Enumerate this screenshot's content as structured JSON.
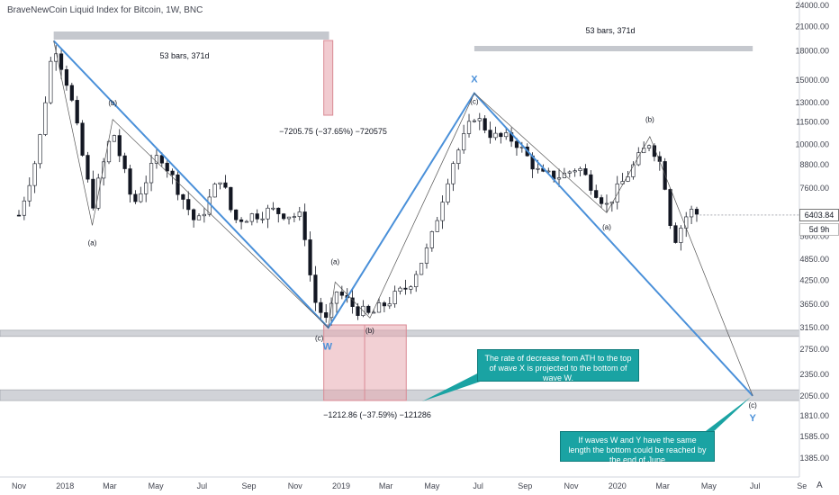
{
  "header": {
    "title": "BraveNewCoin Liquid Index for Bitcoin, 1W, BNC"
  },
  "price_tag": "6403.84",
  "time_tag": "5d 9h",
  "axis_button": "A",
  "annotations": {
    "bars_top_left": "53 bars, 371d",
    "bars_top_right": "53 bars, 371d",
    "measure_top": "−7205.75 (−37.65%) −720575",
    "measure_bottom": "−1212.86 (−37.59%) −121286",
    "callout_ath": "The rate of decrease from ATH to the top of wave X is projected to the bottom of wave W.",
    "callout_june": "If waves W and Y have the same length the bottom could be reached by the end of June",
    "wave_labels": [
      {
        "id": "a1",
        "text": "(a)"
      },
      {
        "id": "b1",
        "text": "(b)"
      },
      {
        "id": "c1",
        "text": "(c)"
      },
      {
        "id": "W",
        "text": "W"
      },
      {
        "id": "a2",
        "text": "(a)"
      },
      {
        "id": "b2",
        "text": "(b)"
      },
      {
        "id": "c2",
        "text": "(c)"
      },
      {
        "id": "X",
        "text": "X"
      },
      {
        "id": "a3",
        "text": "(a)"
      },
      {
        "id": "b3",
        "text": "(b)"
      },
      {
        "id": "c3",
        "text": "(c)"
      },
      {
        "id": "Y",
        "text": "Y"
      }
    ]
  },
  "colors": {
    "up_candle": "#ffffff",
    "down_candle": "#131722",
    "wave_line": "#4a90d9",
    "zone_gray": "#b2b5be",
    "measure_red": "#e7a9b0",
    "callout_teal": "#1aa3a3"
  },
  "chart_data": {
    "type": "candlestick",
    "scale": "log",
    "ylim": [
      1250,
      24500
    ],
    "y_ticks": [
      "24000.00",
      "21000.00",
      "18000.00",
      "15000.00",
      "13000.00",
      "11500.00",
      "10000.00",
      "8800.00",
      "7600.00",
      "6400.00",
      "5600.00",
      "4850.00",
      "4250.00",
      "3650.00",
      "3150.00",
      "2750.00",
      "2350.00",
      "2050.00",
      "1810.00",
      "1585.00",
      "1385.00"
    ],
    "x_ticks": [
      "Nov",
      "2018",
      "Mar",
      "May",
      "Jul",
      "Sep",
      "Nov",
      "2019",
      "Mar",
      "May",
      "Jul",
      "Sep",
      "Nov",
      "2020",
      "Mar",
      "May",
      "Jul",
      "Se"
    ],
    "key_prices": [
      {
        "name": "ATH",
        "date": "2017-12-17",
        "price": 19200
      },
      {
        "name": "(a)",
        "date": "2018-02-06",
        "price": 6000
      },
      {
        "name": "(b)",
        "date": "2018-03-05",
        "price": 11700
      },
      {
        "name": "(c) W",
        "date": "2018-12-15",
        "price": 3150
      },
      {
        "name": "(a)",
        "date": "2018-12-24",
        "price": 4200
      },
      {
        "name": "(b)",
        "date": "2019-02-08",
        "price": 3350
      },
      {
        "name": "(c) X",
        "date": "2019-06-26",
        "price": 13800
      },
      {
        "name": "(a)",
        "date": "2019-12-18",
        "price": 6500
      },
      {
        "name": "(b)",
        "date": "2020-02-13",
        "price": 10500
      },
      {
        "name": "(c) Y",
        "date": "2020-06-28",
        "price": 2050
      }
    ],
    "zones": [
      {
        "name": "support upper",
        "range": [
          2980,
          3100
        ]
      },
      {
        "name": "support lower",
        "range": [
          1990,
          2130
        ]
      }
    ],
    "last_price": 6403.84
  }
}
